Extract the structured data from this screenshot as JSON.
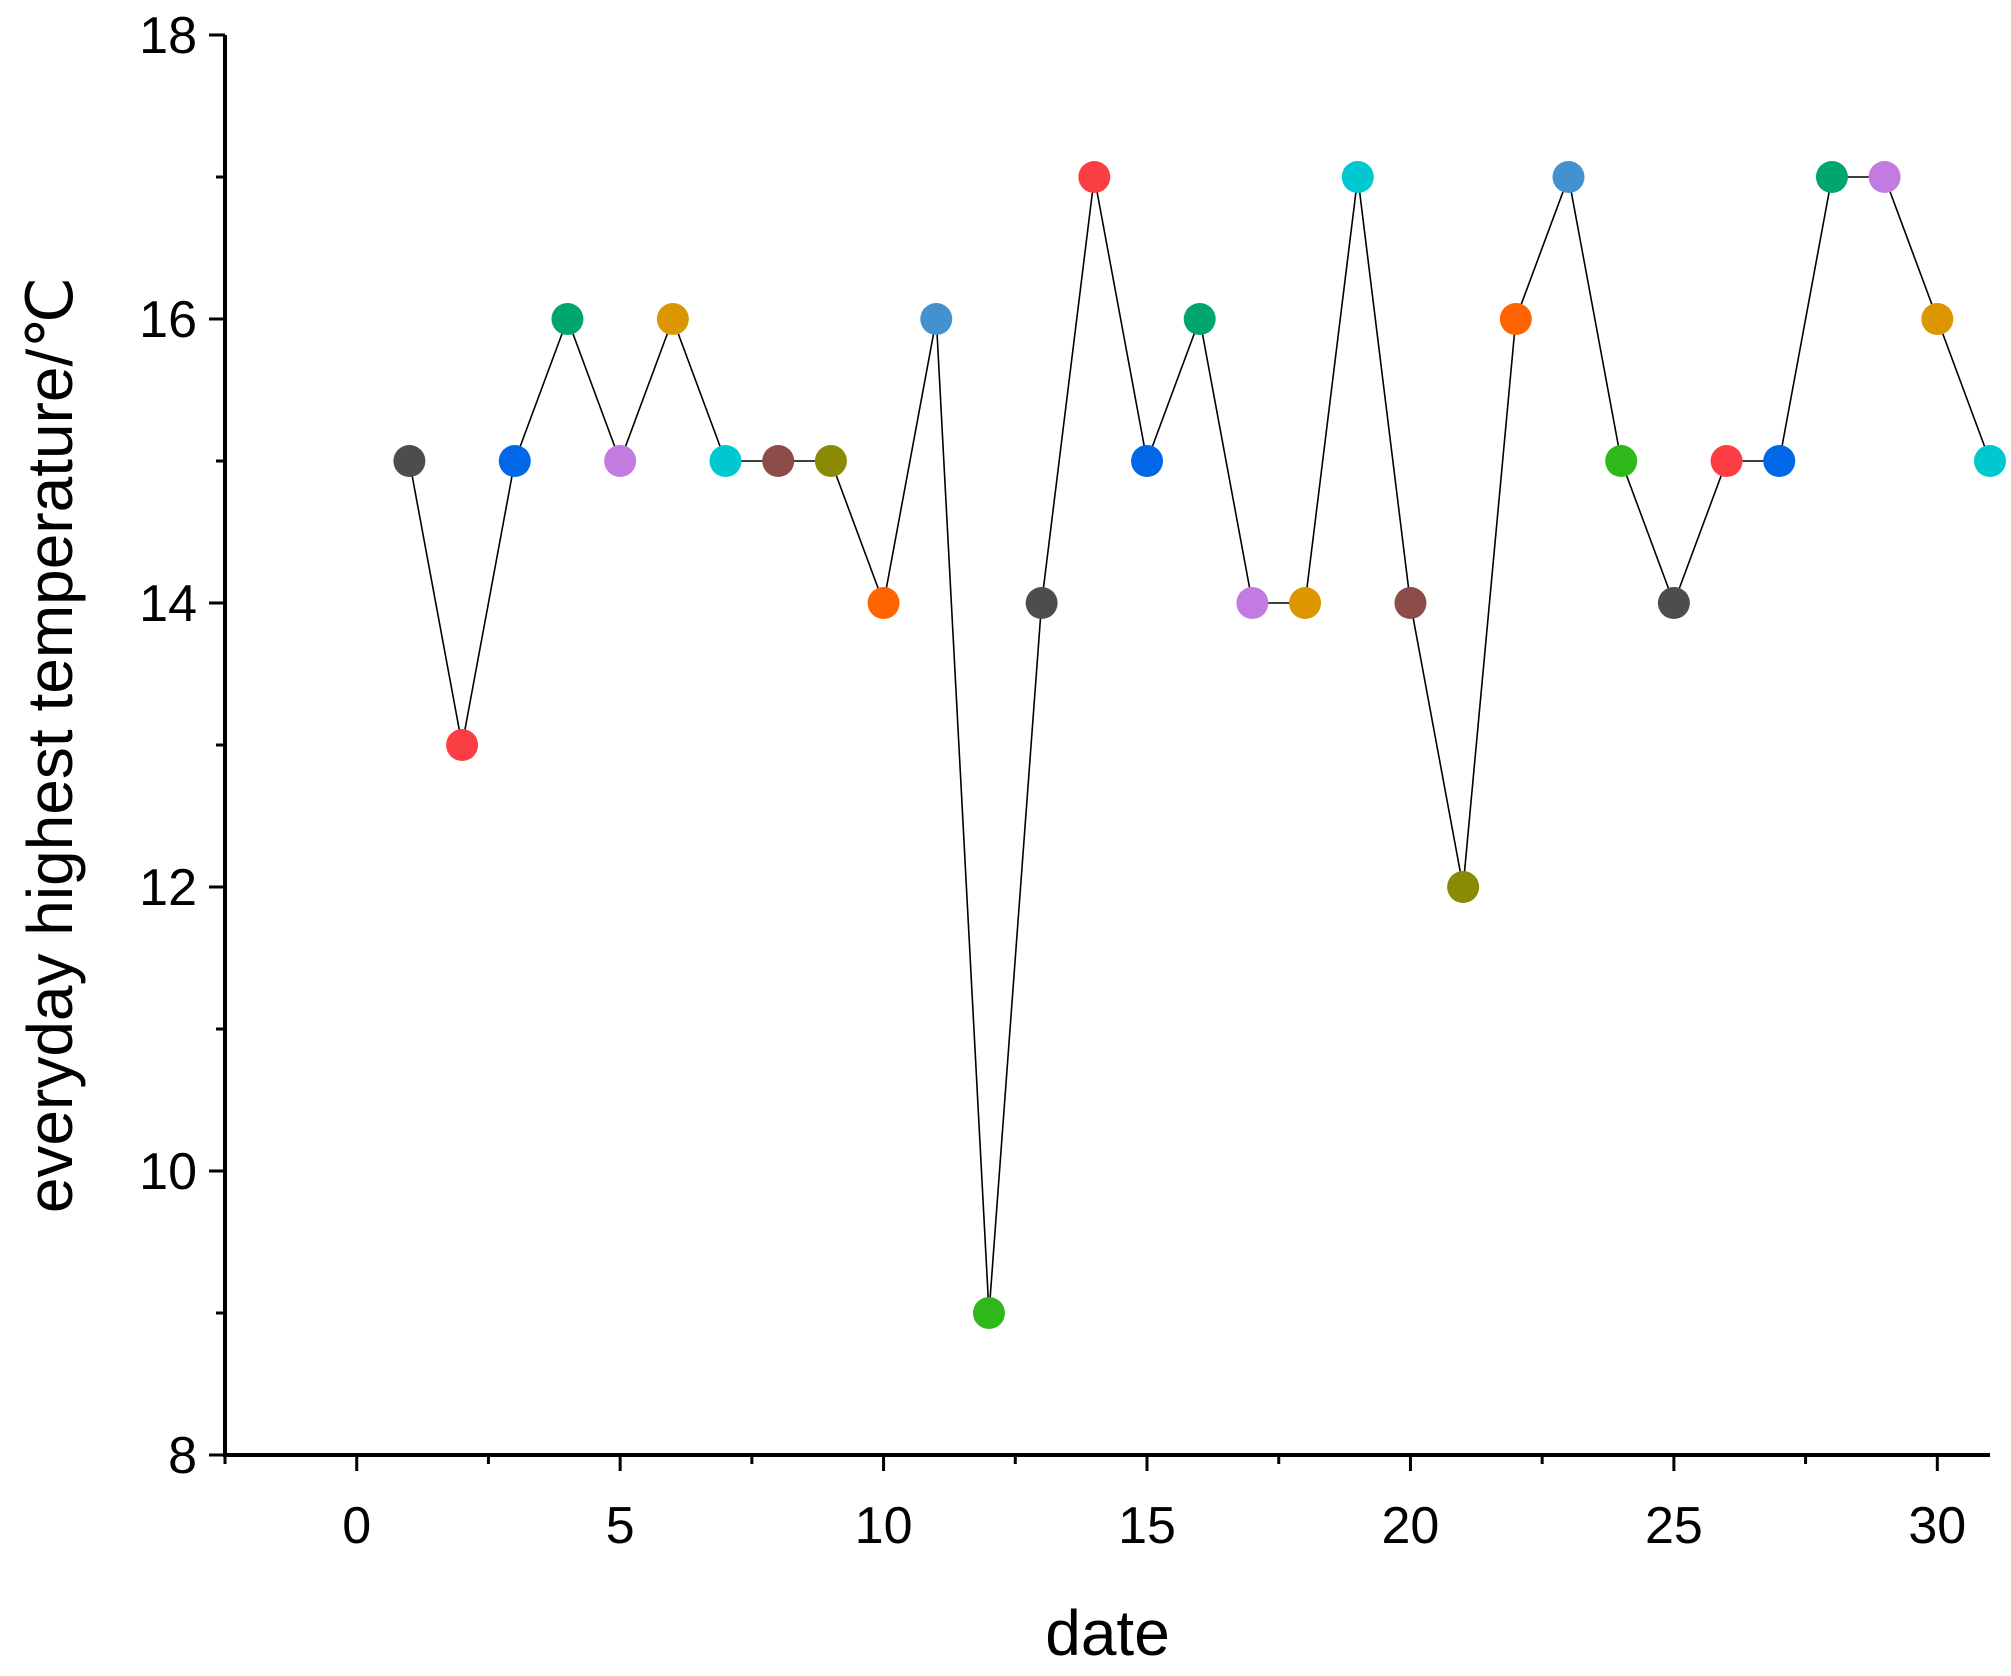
{
  "chart_data": {
    "type": "line",
    "title": "",
    "xlabel": "date",
    "ylabel": "everyday highest temperature/℃",
    "xlim": [
      -2.5,
      31
    ],
    "ylim": [
      8,
      18
    ],
    "x_ticks": [
      0,
      5,
      10,
      15,
      20,
      25,
      30
    ],
    "y_ticks": [
      8,
      10,
      12,
      14,
      16,
      18
    ],
    "grid": false,
    "legend": "none",
    "series": [
      {
        "name": "everyday highest temperature",
        "x": [
          1,
          2,
          3,
          4,
          5,
          6,
          7,
          8,
          9,
          10,
          11,
          12,
          13,
          14,
          15,
          16,
          17,
          18,
          19,
          20,
          21,
          22,
          23,
          24,
          25,
          26,
          27,
          28,
          29,
          30,
          31
        ],
        "values": [
          15,
          13,
          15,
          16,
          15,
          16,
          15,
          15,
          15,
          14,
          16,
          9,
          14,
          17,
          15,
          16,
          14,
          14,
          17,
          14,
          12,
          16,
          17,
          15,
          14,
          15,
          15,
          17,
          17,
          16,
          15
        ],
        "marker_colors": [
          "#4d4d4d",
          "#fb3e44",
          "#0068e6",
          "#00a66e",
          "#c27be0",
          "#dc9700",
          "#00c8d0",
          "#8b4c4a",
          "#8a8a05",
          "#ff6400",
          "#4392cf",
          "#2eb81a",
          "#4d4d4d",
          "#fb3e44",
          "#0068e6",
          "#00a66e",
          "#c27be0",
          "#dc9700",
          "#00c8d0",
          "#8b4c4a",
          "#8a8a05",
          "#ff6400",
          "#4392cf",
          "#2eb81a",
          "#4d4d4d",
          "#fb3e44",
          "#0068e6",
          "#00a66e",
          "#c27be0",
          "#dc9700",
          "#00c8d0"
        ]
      }
    ]
  }
}
